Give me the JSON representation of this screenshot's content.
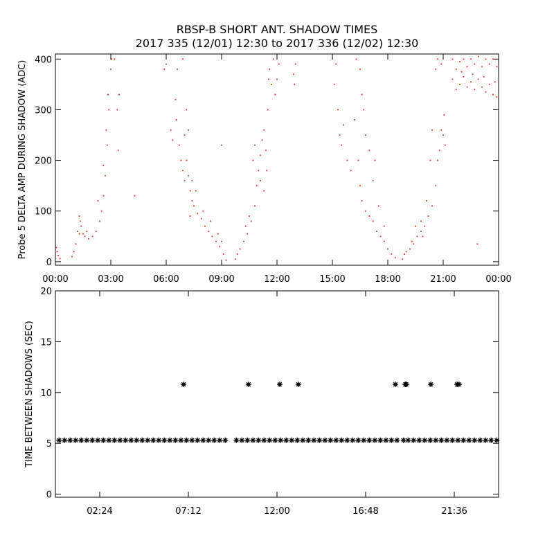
{
  "chart_data": [
    {
      "type": "scatter",
      "title": "RBSP-B SHORT ANT. SHADOW TIMES",
      "subtitle": "2017 335 (12/01) 12:30 to 2017 336 (12/02) 12:30",
      "ylabel": "Probe 5 DELTA AMP DURING SHADOW (ADC)",
      "color": "#e0301e",
      "xlim": [
        0,
        24
      ],
      "xticks": [
        {
          "value": 0,
          "label": "00:00"
        },
        {
          "value": 3,
          "label": "03:00"
        },
        {
          "value": 6,
          "label": "06:00"
        },
        {
          "value": 9,
          "label": "09:00"
        },
        {
          "value": 12,
          "label": "12:00"
        },
        {
          "value": 15,
          "label": "15:00"
        },
        {
          "value": 18,
          "label": "18:00"
        },
        {
          "value": 21,
          "label": "21:00"
        },
        {
          "value": 24,
          "label": "00:00"
        }
      ],
      "ylim": [
        -7,
        410
      ],
      "yticks": [
        0,
        100,
        200,
        300,
        400
      ],
      "x": [
        0.05,
        0.1,
        0.15,
        0.25,
        0.9,
        1.0,
        1.1,
        1.2,
        1.3,
        1.35,
        1.4,
        1.5,
        1.6,
        1.8,
        2.0,
        2.2,
        2.4,
        2.5,
        2.6,
        2.7,
        2.8,
        2.9,
        3.0,
        3.05,
        1.3,
        1.7,
        2.3,
        2.6,
        2.75,
        2.85,
        3.2,
        3.35,
        3.4,
        3.45,
        4.3,
        6.25,
        6.35,
        6.5,
        6.6,
        6.7,
        6.8,
        6.9,
        7.0,
        7.1,
        7.2,
        7.3,
        7.4,
        7.5,
        7.7,
        7.9,
        8.1,
        8.3,
        8.5,
        8.7,
        8.9,
        9.1,
        9.25,
        6.55,
        6.9,
        7.0,
        7.2,
        7.4,
        7.6,
        8.0,
        8.4,
        8.8,
        9.0,
        6.0,
        5.9,
        7.1,
        7.3,
        9.75,
        9.85,
        10.0,
        10.2,
        10.4,
        10.6,
        10.8,
        10.9,
        11.0,
        11.1,
        11.2,
        11.3,
        11.4,
        11.5,
        11.6,
        11.7,
        11.8,
        11.9,
        12.0,
        10.7,
        10.8,
        11.1,
        11.3,
        11.45,
        11.55,
        12.1,
        10.5,
        12.95,
        13.0,
        12.9,
        9.0,
        10.3,
        15.0,
        15.1,
        15.3,
        15.4,
        15.5,
        15.6,
        15.8,
        16.0,
        16.2,
        16.4,
        16.5,
        16.6,
        16.8,
        17.0,
        17.2,
        17.4,
        17.6,
        17.8,
        18.0,
        18.2,
        18.4,
        16.5,
        16.6,
        16.8,
        17.0,
        17.2,
        17.5,
        17.8,
        16.3,
        15.2,
        16.7,
        17.3,
        18.8,
        18.9,
        19.0,
        19.2,
        19.4,
        19.6,
        19.8,
        20.0,
        20.2,
        20.4,
        20.6,
        20.7,
        20.8,
        20.9,
        21.0,
        21.1,
        19.5,
        19.8,
        20.1,
        20.4,
        20.6,
        20.7,
        20.9,
        21.05,
        19.3,
        20.3,
        19.9,
        21.5,
        21.5,
        21.7,
        21.7,
        21.9,
        21.9,
        22.1,
        22.1,
        22.3,
        22.3,
        22.5,
        22.5,
        22.7,
        22.7,
        22.9,
        22.9,
        23.1,
        23.1,
        23.3,
        23.3,
        23.5,
        23.5,
        23.7,
        23.7,
        23.9,
        23.9,
        22.0,
        22.6,
        23.2,
        23.8,
        22.85
      ],
      "values": [
        28,
        20,
        12,
        6,
        10,
        20,
        35,
        60,
        90,
        80,
        70,
        55,
        50,
        45,
        50,
        60,
        80,
        100,
        130,
        170,
        230,
        300,
        380,
        400,
        55,
        60,
        120,
        190,
        260,
        330,
        400,
        300,
        220,
        330,
        130,
        260,
        240,
        320,
        380,
        230,
        200,
        180,
        160,
        200,
        170,
        140,
        120,
        110,
        95,
        85,
        70,
        60,
        50,
        40,
        30,
        15,
        3,
        280,
        400,
        250,
        260,
        160,
        140,
        100,
        80,
        55,
        40,
        390,
        380,
        300,
        90,
        5,
        15,
        25,
        40,
        55,
        80,
        110,
        150,
        180,
        210,
        240,
        260,
        220,
        300,
        380,
        350,
        400,
        330,
        360,
        200,
        230,
        160,
        140,
        180,
        360,
        390,
        90,
        350,
        390,
        370,
        230,
        70,
        400,
        350,
        300,
        250,
        230,
        270,
        200,
        180,
        280,
        200,
        150,
        120,
        100,
        90,
        80,
        60,
        50,
        40,
        25,
        15,
        8,
        380,
        330,
        250,
        220,
        160,
        110,
        70,
        400,
        390,
        300,
        200,
        5,
        15,
        20,
        25,
        35,
        50,
        60,
        70,
        90,
        110,
        150,
        200,
        220,
        260,
        250,
        230,
        70,
        80,
        120,
        260,
        380,
        400,
        390,
        290,
        40,
        200,
        50,
        400,
        360,
        380,
        340,
        395,
        350,
        400,
        365,
        385,
        345,
        400,
        355,
        390,
        340,
        405,
        360,
        385,
        345,
        400,
        335,
        390,
        350,
        400,
        330,
        385,
        325,
        375,
        370,
        365,
        355,
        35
      ]
    },
    {
      "type": "scatter",
      "marker": "asterisk",
      "ylabel": "TIME BETWEEN SHADOWS (SEC)",
      "color": "#000000",
      "xlim": [
        0,
        24
      ],
      "xticks": [
        {
          "value": 2.4,
          "label": "02:24"
        },
        {
          "value": 7.2,
          "label": "07:12"
        },
        {
          "value": 12,
          "label": "12:00"
        },
        {
          "value": 16.8,
          "label": "16:48"
        },
        {
          "value": 21.6,
          "label": "21:36"
        }
      ],
      "ylim": [
        -0.3,
        20
      ],
      "yticks": [
        0,
        5,
        10,
        15,
        20
      ],
      "x": [
        0.2,
        0.5,
        0.8,
        1.1,
        1.4,
        1.7,
        2.0,
        2.3,
        2.6,
        2.9,
        3.2,
        3.5,
        3.8,
        4.1,
        4.4,
        4.7,
        5.0,
        5.3,
        5.6,
        5.9,
        6.2,
        6.5,
        6.8,
        7.1,
        7.4,
        7.7,
        8.0,
        8.3,
        8.6,
        8.9,
        9.2,
        9.8,
        10.1,
        10.4,
        10.7,
        11.0,
        11.3,
        11.6,
        11.9,
        12.2,
        12.5,
        12.8,
        13.1,
        13.4,
        13.7,
        14.0,
        14.3,
        14.6,
        14.9,
        15.2,
        15.5,
        15.8,
        16.1,
        16.4,
        16.7,
        17.0,
        17.3,
        17.6,
        17.9,
        18.2,
        18.5,
        18.85,
        19.1,
        19.4,
        19.7,
        20.0,
        20.3,
        20.6,
        20.9,
        21.2,
        21.5,
        21.8,
        22.1,
        22.4,
        22.7,
        23.0,
        23.3,
        23.6,
        23.9,
        6.94,
        10.46,
        12.15,
        13.16,
        18.41,
        18.95,
        19.0,
        20.33,
        21.75,
        21.86
      ],
      "values": [
        5.3,
        5.3,
        5.3,
        5.3,
        5.3,
        5.3,
        5.3,
        5.3,
        5.3,
        5.3,
        5.3,
        5.3,
        5.3,
        5.3,
        5.3,
        5.3,
        5.3,
        5.3,
        5.3,
        5.3,
        5.3,
        5.3,
        5.3,
        5.3,
        5.3,
        5.3,
        5.3,
        5.3,
        5.3,
        5.3,
        5.3,
        5.3,
        5.3,
        5.3,
        5.3,
        5.3,
        5.3,
        5.3,
        5.3,
        5.3,
        5.3,
        5.3,
        5.3,
        5.3,
        5.3,
        5.3,
        5.3,
        5.3,
        5.3,
        5.3,
        5.3,
        5.3,
        5.3,
        5.3,
        5.3,
        5.3,
        5.3,
        5.3,
        5.3,
        5.3,
        5.3,
        5.3,
        5.3,
        5.3,
        5.3,
        5.3,
        5.3,
        5.3,
        5.3,
        5.3,
        5.3,
        5.3,
        5.3,
        5.3,
        5.3,
        5.3,
        5.3,
        5.3,
        5.3,
        10.8,
        10.8,
        10.8,
        10.8,
        10.8,
        10.8,
        10.8,
        10.8,
        10.8,
        10.8
      ]
    }
  ]
}
